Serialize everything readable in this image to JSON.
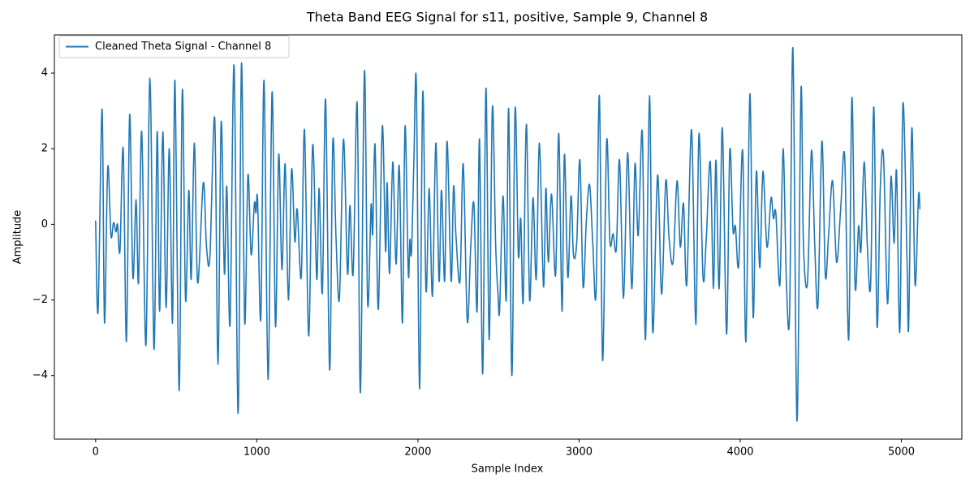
{
  "chart_data": {
    "type": "line",
    "title": "Theta Band EEG Signal for s11, positive, Sample 9, Channel 8",
    "xlabel": "Sample Index",
    "ylabel": "Amplitude",
    "xlim": [
      -256,
      5375
    ],
    "ylim": [
      -5.68,
      5.01
    ],
    "xticks": [
      0,
      1000,
      2000,
      3000,
      4000,
      5000
    ],
    "yticks": [
      {
        "value": -4,
        "label": "−4"
      },
      {
        "value": -2,
        "label": "−2"
      },
      0,
      2,
      4
    ],
    "grid": false,
    "legend": "upper left",
    "x": [
      0,
      15,
      40,
      55,
      75,
      95,
      111,
      126,
      136,
      151,
      171,
      191,
      211,
      231,
      251,
      266,
      286,
      312,
      337,
      362,
      382,
      397,
      417,
      437,
      457,
      477,
      492,
      518,
      538,
      558,
      578,
      593,
      613,
      633,
      668,
      688,
      709,
      739,
      759,
      779,
      799,
      814,
      834,
      859,
      884,
      905,
      925,
      945,
      965,
      985,
      995,
      1005,
      1025,
      1045,
      1070,
      1095,
      1116,
      1136,
      1156,
      1176,
      1196,
      1216,
      1236,
      1251,
      1276,
      1296,
      1322,
      1347,
      1372,
      1387,
      1407,
      1427,
      1452,
      1472,
      1492,
      1513,
      1538,
      1563,
      1578,
      1598,
      1623,
      1643,
      1668,
      1688,
      1709,
      1719,
      1734,
      1754,
      1779,
      1799,
      1809,
      1824,
      1844,
      1864,
      1884,
      1904,
      1920,
      1940,
      1950,
      1960,
      1975,
      1990,
      2010,
      2030,
      2050,
      2070,
      2090,
      2111,
      2131,
      2146,
      2166,
      2181,
      2206,
      2221,
      2236,
      2261,
      2281,
      2306,
      2327,
      2347,
      2367,
      2382,
      2402,
      2422,
      2442,
      2462,
      2482,
      2497,
      2507,
      2528,
      2548,
      2563,
      2583,
      2603,
      2623,
      2638,
      2653,
      2673,
      2693,
      2714,
      2734,
      2754,
      2779,
      2794,
      2809,
      2829,
      2854,
      2874,
      2894,
      2909,
      2930,
      2950,
      2965,
      2985,
      3005,
      3025,
      3045,
      3065,
      3085,
      3105,
      3126,
      3146,
      3171,
      3191,
      3211,
      3231,
      3251,
      3276,
      3301,
      3327,
      3347,
      3367,
      3392,
      3412,
      3437,
      3457,
      3487,
      3512,
      3538,
      3558,
      3583,
      3608,
      3628,
      3648,
      3668,
      3698,
      3724,
      3744,
      3769,
      3789,
      3814,
      3834,
      3849,
      3869,
      3889,
      3915,
      3935,
      3955,
      3970,
      3990,
      4015,
      4035,
      4060,
      4080,
      4100,
      4121,
      4141,
      4166,
      4191,
      4206,
      4221,
      4246,
      4266,
      4286,
      4306,
      4327,
      4352,
      4377,
      4392,
      4417,
      4442,
      4462,
      4482,
      4507,
      4528,
      4548,
      4573,
      4598,
      4623,
      4648,
      4673,
      4693,
      4713,
      4734,
      4749,
      4769,
      4789,
      4809,
      4829,
      4849,
      4869,
      4889,
      4914,
      4935,
      4955,
      4970,
      4990,
      5010,
      5035,
      5045,
      5065,
      5085,
      5106,
      5115
    ],
    "series": [
      {
        "name": "Cleaned Theta Signal - Channel 8",
        "color": "#1f77b4",
        "values": [
          0.1,
          -2.3,
          3.05,
          -2.6,
          1.5,
          -0.3,
          0.05,
          -0.2,
          0,
          -0.7,
          2.0,
          -3.1,
          2.9,
          -1.4,
          0.65,
          -1.55,
          2.45,
          -3.2,
          3.87,
          -3.3,
          2.45,
          -2.3,
          2.45,
          -2.2,
          2.0,
          -2.6,
          3.8,
          -4.4,
          3.55,
          -2.0,
          0.9,
          -1.45,
          2.15,
          -1.55,
          1.1,
          -0.6,
          -0.85,
          2.8,
          -3.7,
          2.7,
          -1.3,
          1.0,
          -2.65,
          4.2,
          -5.0,
          4.25,
          -2.6,
          1.3,
          -0.8,
          0.55,
          0.3,
          0.65,
          -2.5,
          3.8,
          -4.1,
          3.5,
          -2.7,
          1.85,
          -1.2,
          1.6,
          -2.0,
          1.45,
          -0.45,
          0.4,
          -1.4,
          2.5,
          -2.95,
          2.1,
          -1.45,
          0.95,
          -1.8,
          3.3,
          -3.85,
          2.2,
          -0.4,
          -1.95,
          2.25,
          -1.3,
          0.5,
          -1.3,
          3.2,
          -4.45,
          4.05,
          -2.1,
          0.5,
          -0.25,
          2.1,
          -2.25,
          2.6,
          -0.7,
          1.1,
          -1.3,
          1.65,
          -1.05,
          1.55,
          -2.6,
          2.6,
          -1.3,
          -0.4,
          -0.75,
          1.7,
          3.75,
          -4.35,
          3.5,
          -1.75,
          0.95,
          -1.9,
          2.15,
          -1.5,
          0.9,
          -1.5,
          2.2,
          -1.5,
          1.0,
          -0.3,
          -1.5,
          1.6,
          -2.55,
          -0.65,
          0.55,
          -2.3,
          2.25,
          -3.95,
          3.6,
          -3.05,
          3.1,
          -0.5,
          -1.85,
          -2.25,
          0.75,
          -2.0,
          3.05,
          -4.0,
          3.05,
          -0.8,
          0.15,
          -2.05,
          2.65,
          -2.0,
          0.7,
          -1.45,
          2.15,
          -1.65,
          0.95,
          -1.0,
          0.8,
          -1.35,
          2.4,
          -2.3,
          1.85,
          -1.4,
          0.75,
          -0.8,
          -0.5,
          1.7,
          -1.65,
          0.1,
          1.05,
          -0.5,
          -1.85,
          3.4,
          -3.6,
          2.2,
          -0.45,
          -0.25,
          -0.65,
          1.7,
          -1.95,
          1.9,
          -1.7,
          1.6,
          -0.3,
          2.45,
          -3.05,
          3.4,
          -2.85,
          1.3,
          -1.85,
          1.15,
          -0.35,
          -1.0,
          1.15,
          -0.6,
          0.55,
          -1.6,
          2.5,
          -2.65,
          2.4,
          -1.4,
          -0.4,
          1.65,
          -1.7,
          1.7,
          -1.7,
          2.55,
          -2.9,
          1.95,
          -0.15,
          -0.05,
          -1.1,
          1.95,
          -3.1,
          3.45,
          -2.45,
          1.4,
          -1.15,
          1.4,
          -0.6,
          0.7,
          0.15,
          0.3,
          -1.6,
          2.0,
          -1.45,
          -2.4,
          4.65,
          -5.2,
          3.55,
          -0.5,
          -1.55,
          1.95,
          -0.5,
          -2.15,
          2.2,
          -1.35,
          -0.3,
          1.15,
          -1.0,
          0.4,
          1.8,
          -3.05,
          3.35,
          -1.65,
          -0.05,
          -0.7,
          1.65,
          -0.6,
          -1.6,
          3.1,
          -2.7,
          0.95,
          1.8,
          -2.1,
          1.25,
          -0.5,
          1.4,
          -2.85,
          3.2,
          -0.95,
          -2.7,
          2.55,
          -1.6,
          0.75,
          0.4
        ]
      }
    ]
  }
}
